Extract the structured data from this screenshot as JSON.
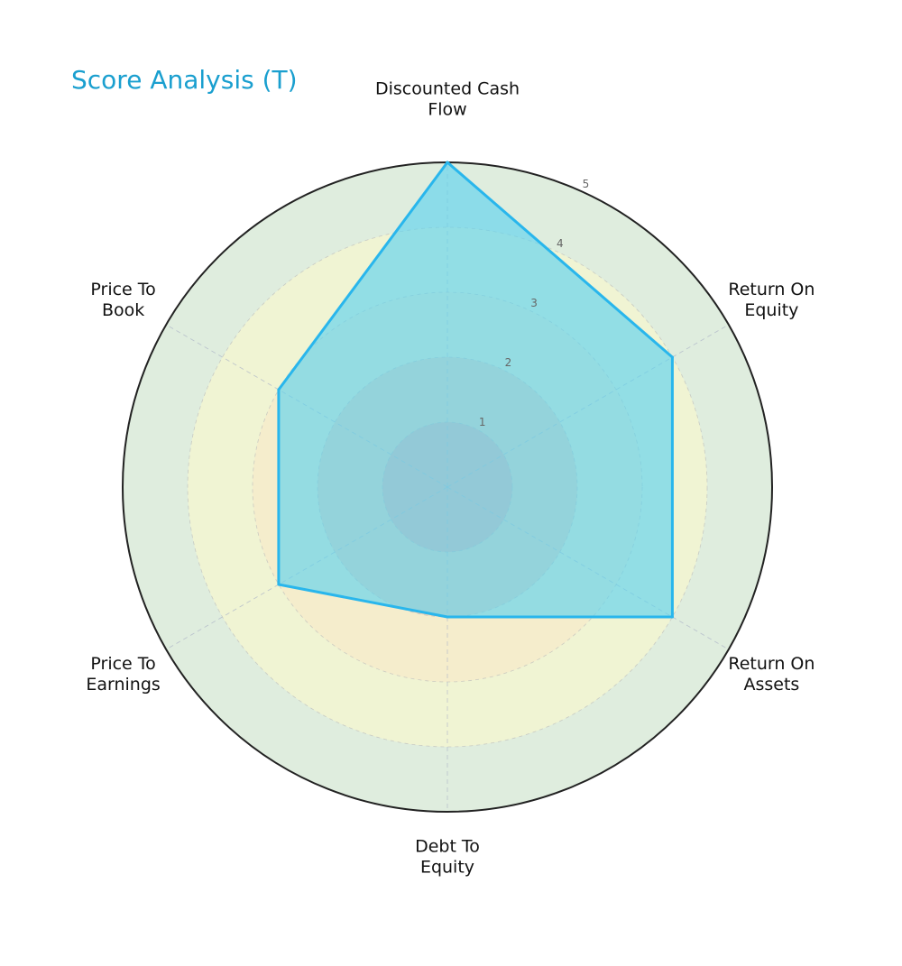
{
  "chart_data": {
    "type": "radar",
    "title": "Score Analysis (T)",
    "axes": [
      "Discounted Cash\nFlow",
      "Return On\nEquity",
      "Return On\nAssets",
      "Debt To\nEquity",
      "Price To\nEarnings",
      "Price To\nBook"
    ],
    "values": [
      5,
      4,
      4,
      2,
      3,
      3
    ],
    "rlim": [
      0,
      5
    ],
    "rticks": [
      "1",
      "2",
      "3",
      "4",
      "5"
    ],
    "bands": [
      {
        "from": 0,
        "to": 1,
        "color": "#f0a3a3"
      },
      {
        "from": 1,
        "to": 2,
        "color": "#f6c5a8"
      },
      {
        "from": 2,
        "to": 3,
        "color": "#f8e8c8"
      },
      {
        "from": 3,
        "to": 4,
        "color": "#fbf9cb"
      },
      {
        "from": 4,
        "to": 5,
        "color": "#c9e1c8"
      }
    ],
    "series_color": "#29b6ec",
    "fill_color": "#5fd3ee",
    "outline_color": "#222222",
    "grid": true
  }
}
